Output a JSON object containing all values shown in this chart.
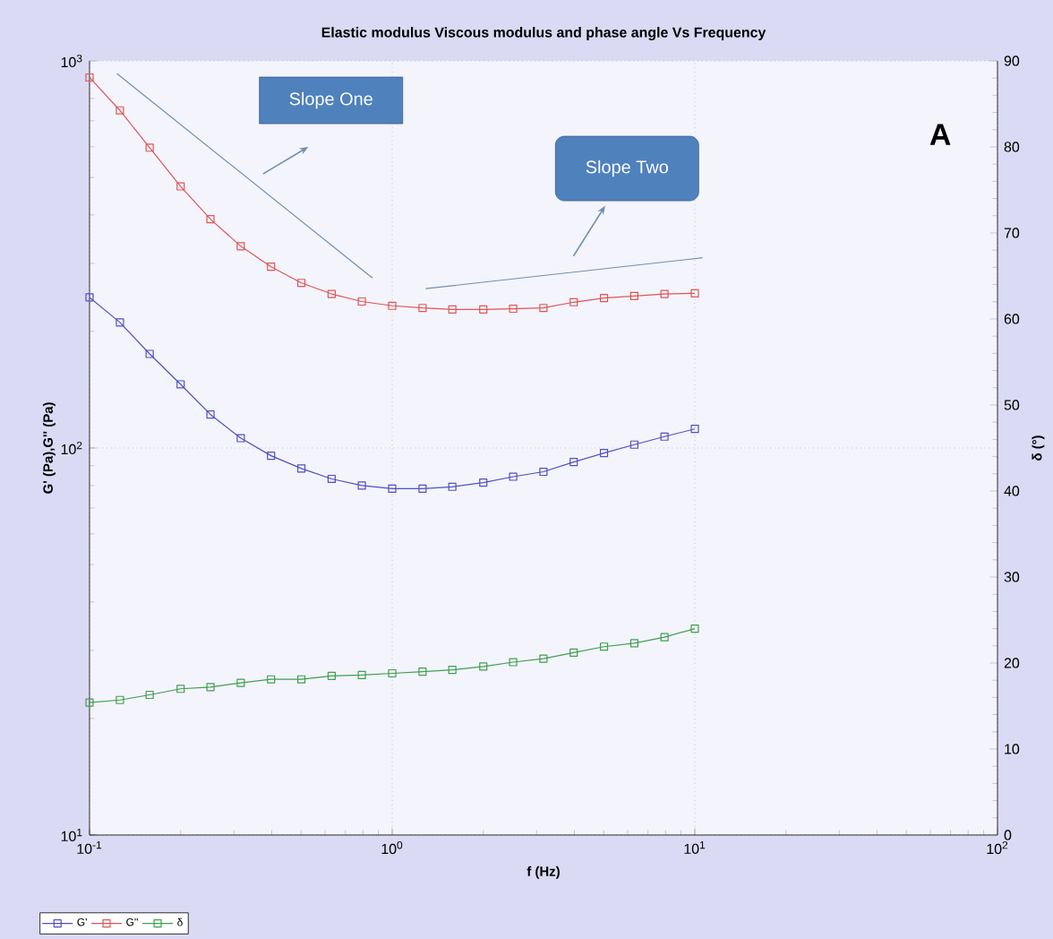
{
  "chart_data": {
    "type": "line",
    "title": "Elastic modulus Viscous modulus and phase angle Vs Frequency",
    "xlabel": "f (Hz)",
    "ylabel": "G' (Pa),G'' (Pa)",
    "y2label": "δ (°)",
    "x": [
      0.1,
      0.126,
      0.158,
      0.2,
      0.251,
      0.316,
      0.398,
      0.501,
      0.631,
      0.794,
      1,
      1.26,
      1.58,
      2,
      2.51,
      3.16,
      3.98,
      5.01,
      6.31,
      7.94,
      10
    ],
    "series": [
      {
        "name": "G'",
        "color": "#4f4fc4",
        "values": [
          245,
          211,
          175,
          146,
          122,
          106,
          95.5,
          88.5,
          83.2,
          80,
          78.5,
          78.5,
          79.4,
          81.4,
          84.3,
          86.8,
          92,
          97,
          102,
          107,
          112
        ]
      },
      {
        "name": "G''",
        "color": "#e05555",
        "values": [
          906,
          745,
          597,
          474,
          390,
          332,
          294,
          267,
          250,
          239,
          233,
          230,
          228,
          228,
          229,
          230,
          238,
          244,
          247,
          250,
          251
        ]
      },
      {
        "name": "δ",
        "color": "#3f9f4f",
        "axis": "y2",
        "values": [
          15.4,
          15.7,
          16.3,
          17.0,
          17.2,
          17.7,
          18.1,
          18.1,
          18.5,
          18.6,
          18.8,
          19.0,
          19.2,
          19.6,
          20.1,
          20.5,
          21.2,
          21.9,
          22.3,
          23.0,
          24.0
        ]
      },
      {
        "color": "#6f8faf",
        "marker": "none",
        "x": [
          0.123,
          0.86
        ],
        "values": [
          928,
          275
        ]
      },
      {
        "color": "#6f8faf",
        "marker": "none",
        "x": [
          1.29,
          10.6
        ],
        "values": [
          258,
          310
        ]
      }
    ],
    "annotations": [
      "Slope One",
      "Slope Two",
      "A"
    ],
    "log": "xy",
    "grid": true,
    "legend": "bottom left",
    "marker": "square",
    "line_style": "solid",
    "xlim": [
      0.1,
      100
    ],
    "xticks": [
      {
        "value": 0.1,
        "label": "10$^{-1}$"
      },
      {
        "value": 1,
        "label": "10$^{0}$"
      },
      {
        "value": 10,
        "label": "10$^{1}$"
      },
      {
        "value": 100,
        "label": "10$^{2}$"
      }
    ],
    "ylim": [
      10,
      1000
    ],
    "yticks": [
      {
        "value": 10,
        "label": "10$^{1}$"
      },
      {
        "value": 100,
        "label": "10$^{2}$"
      },
      {
        "value": 1000,
        "label": "10$^{3}$"
      }
    ],
    "y2lim": [
      0,
      90
    ],
    "y2ticks": [
      0,
      10,
      20,
      30,
      40,
      50,
      60,
      70,
      80,
      90
    ]
  }
}
